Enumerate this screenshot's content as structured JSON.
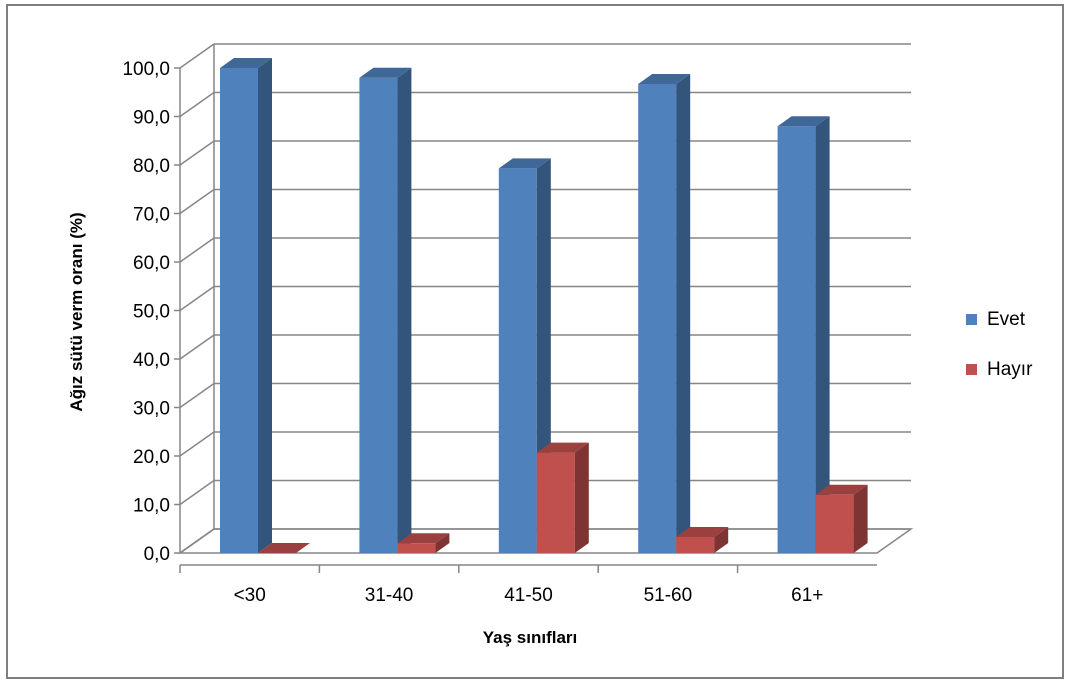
{
  "chart_data": {
    "type": "bar",
    "categories": [
      "<30",
      "31-40",
      "41-50",
      "51-60",
      "61+"
    ],
    "series": [
      {
        "name": "Evet",
        "color": "#4f81bd",
        "values": [
          100.0,
          98.0,
          79.3,
          96.7,
          88.0
        ]
      },
      {
        "name": "Hayır",
        "color": "#c0504d",
        "values": [
          0.0,
          2.0,
          20.7,
          3.3,
          12.0
        ]
      }
    ],
    "xlabel": "Yaş sınıfları",
    "ylabel": "Ağız sütü verm oranı (%)",
    "ylim": [
      0,
      100
    ],
    "yticks": [
      "0,0",
      "10,0",
      "20,0",
      "30,0",
      "40,0",
      "50,0",
      "60,0",
      "70,0",
      "80,0",
      "90,0",
      "100,0"
    ],
    "grid": true,
    "legend": "right",
    "style": "3d-clustered-column"
  }
}
